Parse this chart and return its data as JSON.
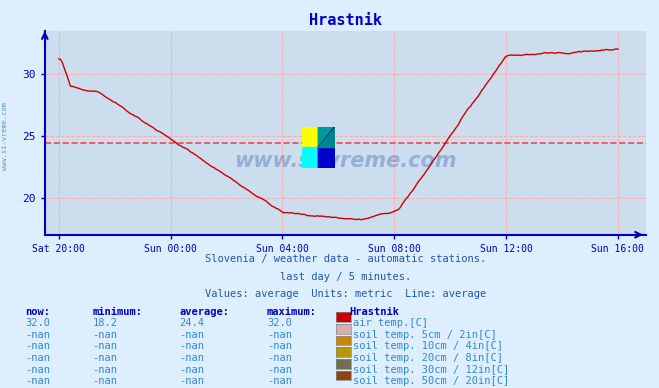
{
  "title": "Hrastnik",
  "title_color": "#0000cc",
  "background_color": "#ddeeff",
  "plot_bg_color": "#ccdded",
  "grid_color": "#ffaaaa",
  "axis_color": "#0000bb",
  "line_color": "#cc0000",
  "avg_line_color": "#ff4444",
  "avg_line_value": 24.4,
  "subtitle1": "Slovenia / weather data - automatic stations.",
  "subtitle2": "last day / 5 minutes.",
  "subtitle3": "Values: average  Units: metric  Line: average",
  "x_tick_labels": [
    "Sat 20:00",
    "Sun 00:00",
    "Sun 04:00",
    "Sun 08:00",
    "Sun 12:00",
    "Sun 16:00"
  ],
  "x_tick_positions": [
    0,
    240,
    480,
    720,
    960,
    1200
  ],
  "y_ticks": [
    20,
    25,
    30
  ],
  "ylim": [
    17.0,
    33.5
  ],
  "xlim": [
    -30,
    1260
  ],
  "legend_items": [
    {
      "color": "#cc0000",
      "label": "air temp.[C]"
    },
    {
      "color": "#d4b0b0",
      "label": "soil temp. 5cm / 2in[C]"
    },
    {
      "color": "#c8860a",
      "label": "soil temp. 10cm / 4in[C]"
    },
    {
      "color": "#b8960a",
      "label": "soil temp. 20cm / 8in[C]"
    },
    {
      "color": "#707050",
      "label": "soil temp. 30cm / 12in[C]"
    },
    {
      "color": "#8B4513",
      "label": "soil temp. 50cm / 20in[C]"
    }
  ],
  "table_headers": [
    "now:",
    "minimum:",
    "average:",
    "maximum:",
    "Hrastnik"
  ],
  "table_rows": [
    [
      "32.0",
      "18.2",
      "24.4",
      "32.0",
      "air temp.[C]"
    ],
    [
      "-nan",
      "-nan",
      "-nan",
      "-nan",
      "soil temp. 5cm / 2in[C]"
    ],
    [
      "-nan",
      "-nan",
      "-nan",
      "-nan",
      "soil temp. 10cm / 4in[C]"
    ],
    [
      "-nan",
      "-nan",
      "-nan",
      "-nan",
      "soil temp. 20cm / 8in[C]"
    ],
    [
      "-nan",
      "-nan",
      "-nan",
      "-nan",
      "soil temp. 30cm / 12in[C]"
    ],
    [
      "-nan",
      "-nan",
      "-nan",
      "-nan",
      "soil temp. 50cm / 20in[C]"
    ]
  ],
  "watermark": "www.si-vreme.com"
}
